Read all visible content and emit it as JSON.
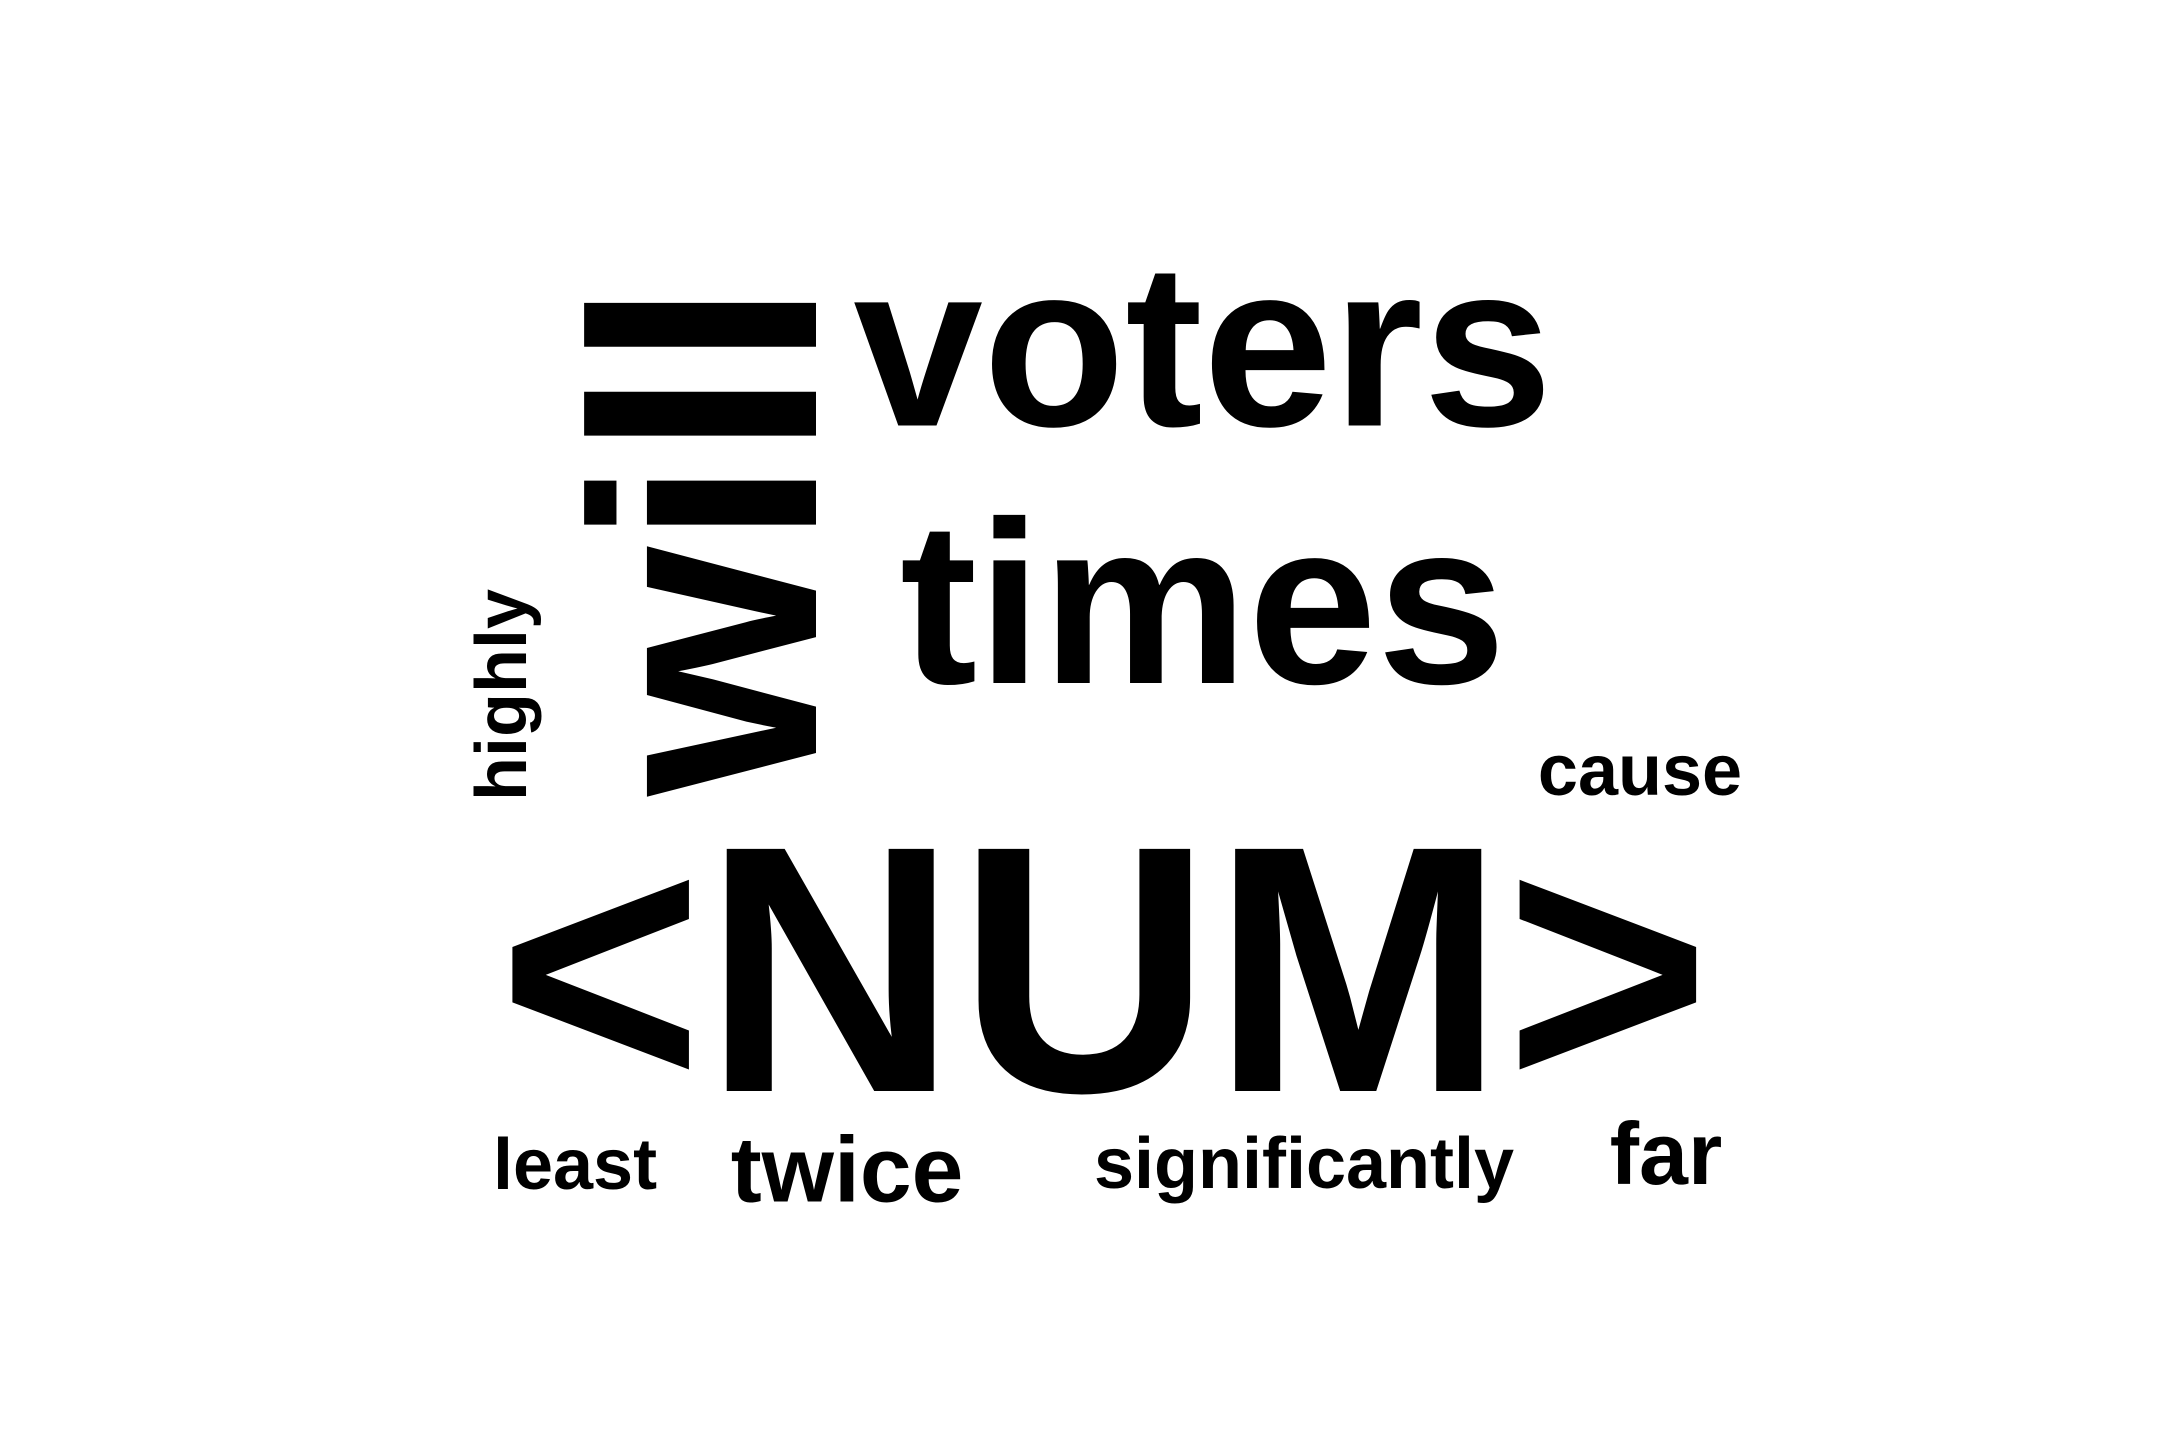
{
  "word_cloud": {
    "words": [
      {
        "id": "num",
        "text": "<NUM>"
      },
      {
        "id": "will",
        "text": "will"
      },
      {
        "id": "voters",
        "text": "voters"
      },
      {
        "id": "times",
        "text": "times"
      },
      {
        "id": "twice",
        "text": "twice"
      },
      {
        "id": "far",
        "text": "far"
      },
      {
        "id": "highly",
        "text": "highly"
      },
      {
        "id": "least",
        "text": "least"
      },
      {
        "id": "cause",
        "text": "cause"
      },
      {
        "id": "significantly",
        "text": "significantly"
      }
    ],
    "text_color": "#000000",
    "background_color": "#ffffff"
  }
}
